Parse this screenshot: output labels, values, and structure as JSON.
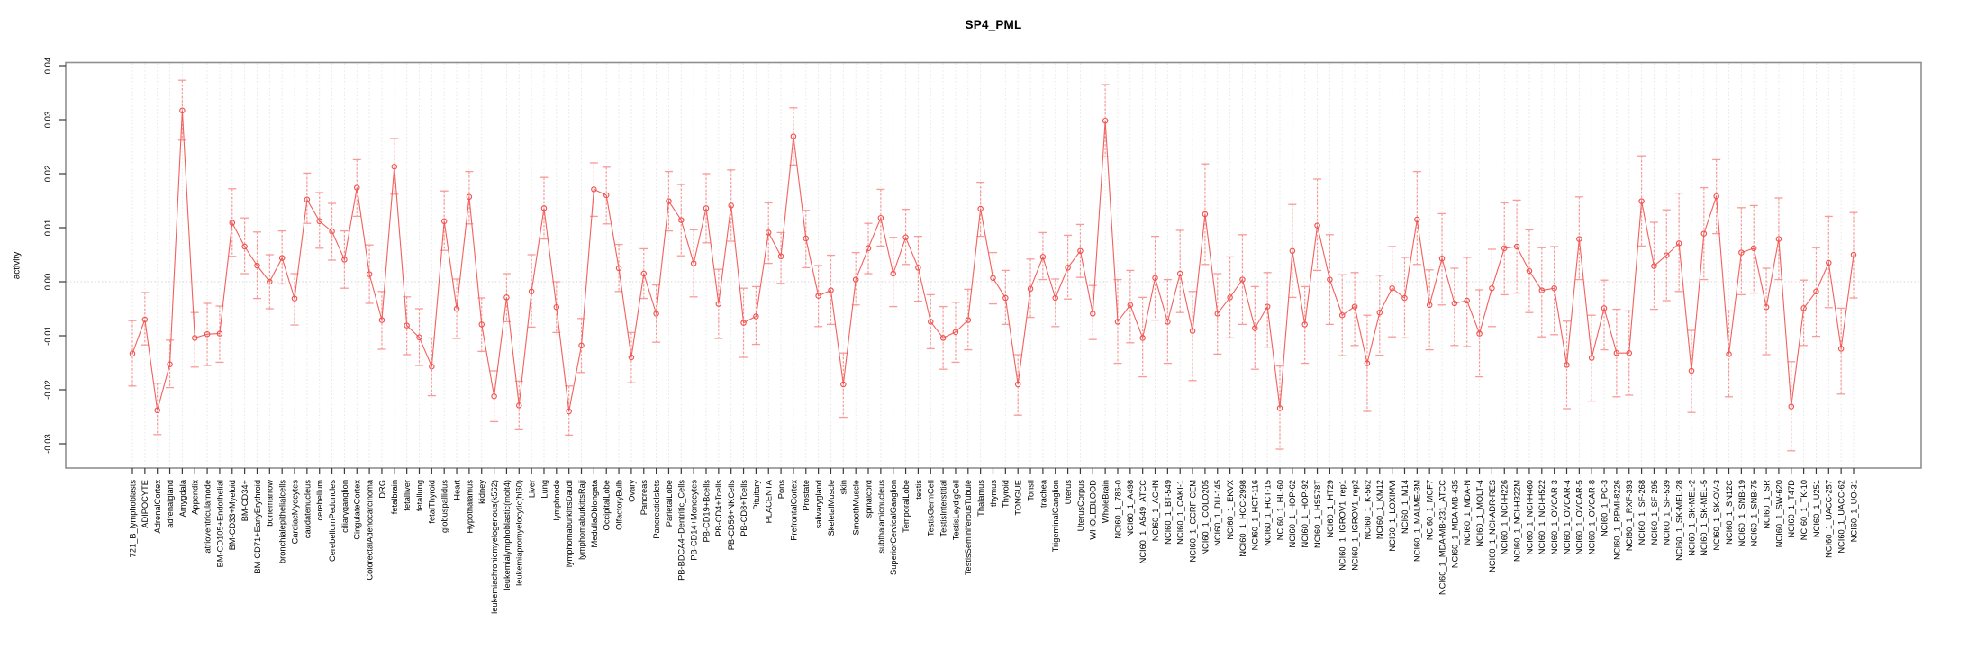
{
  "chart_data": {
    "type": "scatter",
    "subtype": "error-bar-series",
    "title": "SP4_PML",
    "xlabel": "",
    "ylabel": "activity",
    "ylim": [
      -0.0345,
      0.0405
    ],
    "grid": "vertical dashed gridline per category; dotted horizontal line at 0.00",
    "legend_position": "none",
    "ytick_values": [
      0.04,
      0.03,
      0.02,
      0.01,
      0.0,
      -0.01,
      -0.02,
      -0.03
    ],
    "ytick_labels": [
      "0.04",
      "0.03",
      "0.02",
      "0.01",
      "0.00",
      "-0.01",
      "-0.02",
      "-0.03"
    ],
    "categories": [
      "721_B_lymphoblasts",
      "ADIPOCYTE",
      "AdrenalCortex",
      "adrenalgland",
      "Amygdala",
      "Appendix",
      "atrioventricularnode",
      "BM-CD105+Endothelial",
      "BM-CD33+Myeloid",
      "BM-CD34+",
      "BM-CD71+EarlyErythroid",
      "bonemarrow",
      "bronchialepithelialcells",
      "CardiacMyocytes",
      "caudatenucleus",
      "cerebellum",
      "CerebellumPeduncles",
      "ciliaryganglion",
      "CingulateCortex",
      "ColorectalAdenocarcinoma",
      "DRG",
      "fetalbrain",
      "fetalliver",
      "fetallung",
      "fetalThyroid",
      "globuspallidus",
      "Heart",
      "Hypothalamus",
      "kidney",
      "leukemiachronicmyelogenous(k562)",
      "leukemialymphoblastic(molt4)",
      "leukemiapromyelocytic(hl60)",
      "Liver",
      "Lung",
      "lymphnode",
      "lymphomaburkittsDaudi",
      "lymphomaburkittsRaji",
      "MedullaOblongata",
      "OccipitalLobe",
      "OlfactoryBulb",
      "Ovary",
      "Pancreas",
      "PancreaticIslets",
      "ParietalLobe",
      "PB-BDCA4+Dentritic_Cells",
      "PB-CD14+Monocytes",
      "PB-CD19+Bcells",
      "PB-CD4+Tcells",
      "PB-CD56+NKCells",
      "PB-CD8+Tcells",
      "Pituitary",
      "PLACENTA",
      "Pons",
      "PrefrontalCortex",
      "Prostate",
      "salivarygland",
      "SkeletalMuscle",
      "skin",
      "SmoothMuscle",
      "spinalcord",
      "subthalamicnucleus",
      "SuperiorCervicalGanglion",
      "TemporalLobe",
      "testis",
      "TestisGermCell",
      "TestisInterstitial",
      "TestisLeydigCell",
      "TestisSeminiferousTubule",
      "Thalamus",
      "thymus",
      "Thyroid",
      "TONGUE",
      "Tonsil",
      "trachea",
      "TrigeminalGanglion",
      "Uterus",
      "UterusCorpus",
      "WHOLEBLOOD",
      "WholeBrain",
      "NCI60_1_786-0",
      "NCI60_1_A498",
      "NCI60_1_A549_ATCC",
      "NCI60_1_ACHN",
      "NCI60_1_BT-549",
      "NCI60_1_CAKI-1",
      "NCI60_1_CCRF-CEM",
      "NCI60_1_COLO205",
      "NCI60_1_DU-145",
      "NCI60_1_EKVX",
      "NCI60_1_HCC-2998",
      "NCI60_1_HCT-116",
      "NCI60_1_HCT-15",
      "NCI60_1_HL-60",
      "NCI60_1_HOP-62",
      "NCI60_1_HOP-92",
      "NCI60_1_HS578T",
      "NCI60_1_HT29",
      "NCI60_1_IGROV1_rep1",
      "NCI60_1_IGROV1_rep2",
      "NCI60_1_K-562",
      "NCI60_1_KM12",
      "NCI60_1_LOXIMVI",
      "NCI60_1_M14",
      "NCI60_1_MALME-3M",
      "NCI60_1_MCF7",
      "NCI60_1_MDA-MB-231_ATCC",
      "NCI60_1_MDA-MB-435",
      "NCI60_1_MDA-N",
      "NCI60_1_MOLT-4",
      "NCI60_1_NCI-ADR-RES",
      "NCI60_1_NCI-H226",
      "NCI60_1_NCI-H322M",
      "NCI60_1_NCI-H460",
      "NCI60_1_NCI-H522",
      "NCI60_1_OVCAR-3",
      "NCI60_1_OVCAR-4",
      "NCI60_1_OVCAR-5",
      "NCI60_1_OVCAR-8",
      "NCI60_1_PC-3",
      "NCI60_1_RPMI-8226",
      "NCI60_1_RXF-393",
      "NCI60_1_SF-268",
      "NCI60_1_SF-295",
      "NCI60_1_SF-539",
      "NCI60_1_SK-MEL-28",
      "NCI60_1_SK-MEL-2",
      "NCI60_1_SK-MEL-5",
      "NCI60_1_SK-OV-3",
      "NCI60_1_SN12C",
      "NCI60_1_SNB-19",
      "NCI60_1_SNB-75",
      "NCI60_1_SR",
      "NCI60_1_SW-620",
      "NCI60_1_T47D",
      "NCI60_1_TK-10",
      "NCI60_1_U251",
      "NCI60_1_UACC-257",
      "NCI60_1_UACC-62",
      "NCI60_1_UO-31"
    ],
    "values": [
      -0.0133,
      -0.007,
      -0.0238,
      -0.0153,
      0.0317,
      -0.0104,
      -0.0097,
      -0.0096,
      0.0109,
      0.0065,
      0.003,
      0.0,
      0.0044,
      -0.0031,
      0.0152,
      0.0112,
      0.0093,
      0.0041,
      0.0174,
      0.0014,
      -0.0071,
      0.0213,
      -0.0081,
      -0.0103,
      -0.0157,
      0.0112,
      -0.005,
      0.0157,
      -0.0079,
      -0.0212,
      -0.0029,
      -0.0229,
      -0.0018,
      0.0136,
      -0.0047,
      -0.024,
      -0.0118,
      0.0171,
      0.016,
      0.0025,
      -0.014,
      0.0015,
      -0.0059,
      0.0149,
      0.0114,
      0.0034,
      0.0136,
      -0.0041,
      0.0141,
      -0.0076,
      -0.0064,
      0.0091,
      0.0047,
      0.0269,
      0.008,
      -0.0026,
      -0.0016,
      -0.019,
      0.0004,
      0.0062,
      0.0118,
      0.0015,
      0.0082,
      0.0026,
      -0.0074,
      -0.0104,
      -0.0093,
      -0.0071,
      0.0135,
      0.0007,
      -0.003,
      -0.019,
      -0.0013,
      0.0046,
      -0.003,
      0.0026,
      0.0057,
      -0.0059,
      0.0298,
      -0.0074,
      -0.0043,
      -0.0104,
      0.0007,
      -0.0074,
      0.0015,
      -0.0091,
      0.0125,
      -0.0059,
      -0.0029,
      0.0004,
      -0.0086,
      -0.0046,
      -0.0234,
      0.0057,
      -0.0079,
      0.0104,
      0.0004,
      -0.0062,
      -0.0046,
      -0.0151,
      -0.0057,
      -0.0012,
      -0.003,
      0.0115,
      -0.0043,
      0.0043,
      -0.004,
      -0.0035,
      -0.0096,
      -0.0012,
      0.0062,
      0.0065,
      0.002,
      -0.0016,
      -0.0012,
      -0.0154,
      0.0079,
      -0.0141,
      -0.0049,
      -0.0132,
      -0.0132,
      0.0149,
      0.0029,
      0.0049,
      0.0071,
      -0.0165,
      0.0089,
      0.0158,
      -0.0134,
      0.0054,
      0.0062,
      -0.0047,
      0.0079,
      -0.0231,
      -0.0049,
      -0.0018,
      0.0035,
      -0.0124,
      0.005
    ],
    "err_hi": [
      -0.0072,
      -0.002,
      -0.0188,
      -0.0108,
      0.0373,
      -0.0057,
      -0.004,
      -0.0045,
      0.0172,
      0.0118,
      0.0092,
      0.005,
      0.0094,
      0.0015,
      0.0201,
      0.0165,
      0.0145,
      0.0094,
      0.0226,
      0.0068,
      -0.0018,
      0.0265,
      -0.0028,
      -0.005,
      -0.0104,
      0.0168,
      0.0005,
      0.0204,
      -0.003,
      -0.0165,
      0.0015,
      -0.0184,
      0.005,
      0.0193,
      0.0,
      -0.0193,
      -0.0068,
      0.022,
      0.0212,
      0.0069,
      -0.0094,
      0.0061,
      -0.0006,
      0.0204,
      0.018,
      0.0096,
      0.02,
      0.0023,
      0.0207,
      -0.0012,
      -0.0009,
      0.0146,
      0.0091,
      0.0322,
      0.0132,
      0.003,
      0.0049,
      -0.0132,
      0.0054,
      0.0108,
      0.0171,
      0.0082,
      0.0134,
      0.0084,
      -0.0024,
      -0.0046,
      -0.0038,
      -0.0014,
      0.0184,
      0.0054,
      0.0021,
      -0.0135,
      0.0042,
      0.0091,
      0.0005,
      0.0086,
      0.0106,
      -0.0007,
      0.0365,
      0.0004,
      0.0021,
      -0.0029,
      0.0084,
      0.0004,
      0.0095,
      -0.0018,
      0.0218,
      0.0015,
      0.0046,
      0.0087,
      -0.0009,
      0.0017,
      -0.0156,
      0.0143,
      -0.0009,
      0.019,
      0.0087,
      0.0013,
      0.0017,
      -0.0062,
      0.0012,
      0.0065,
      0.0045,
      0.0204,
      0.0022,
      0.0126,
      0.0025,
      0.0045,
      -0.0015,
      0.006,
      0.0146,
      0.0151,
      0.0096,
      0.0063,
      0.0065,
      -0.0073,
      0.0157,
      -0.0062,
      0.0003,
      -0.0051,
      -0.0054,
      0.0233,
      0.011,
      0.0133,
      0.0164,
      -0.009,
      0.0174,
      0.0226,
      -0.0054,
      0.0137,
      0.0141,
      0.0025,
      0.0155,
      -0.0148,
      0.0003,
      0.0063,
      0.0121,
      -0.0049,
      0.0128
    ],
    "err_lo": [
      -0.0193,
      -0.0117,
      -0.0283,
      -0.0196,
      0.0262,
      -0.0158,
      -0.0155,
      -0.0149,
      0.0047,
      0.0015,
      -0.0031,
      -0.005,
      -0.0004,
      -0.008,
      0.0108,
      0.0062,
      0.004,
      -0.0012,
      0.0121,
      -0.004,
      -0.0125,
      0.0162,
      -0.0135,
      -0.0155,
      -0.0211,
      0.0058,
      -0.0105,
      0.0107,
      -0.0129,
      -0.0259,
      -0.0074,
      -0.0274,
      -0.0084,
      0.0079,
      -0.0094,
      -0.0284,
      -0.0168,
      0.0121,
      0.0107,
      -0.0018,
      -0.0187,
      -0.0031,
      -0.0112,
      0.0094,
      0.0048,
      -0.0028,
      0.0072,
      -0.0105,
      0.0075,
      -0.014,
      -0.0116,
      0.0034,
      -0.0003,
      0.0216,
      0.0026,
      -0.0083,
      -0.0079,
      -0.0251,
      -0.0043,
      0.0015,
      0.0066,
      -0.0046,
      0.0032,
      -0.0036,
      -0.0124,
      -0.0162,
      -0.0149,
      -0.0126,
      0.0084,
      -0.0041,
      -0.0079,
      -0.0247,
      -0.0066,
      0.0004,
      -0.0083,
      -0.0032,
      0.0008,
      -0.0107,
      0.0231,
      -0.0151,
      -0.0113,
      -0.0176,
      -0.0071,
      -0.0151,
      -0.0057,
      -0.0183,
      0.0032,
      -0.0134,
      -0.0104,
      -0.0079,
      -0.0162,
      -0.0121,
      -0.031,
      -0.0029,
      -0.0151,
      0.0021,
      -0.0079,
      -0.0137,
      -0.0118,
      -0.024,
      -0.0136,
      -0.0102,
      -0.0104,
      0.0032,
      -0.0126,
      -0.0043,
      -0.0118,
      -0.012,
      -0.0176,
      -0.0083,
      -0.0024,
      -0.0021,
      -0.0057,
      -0.0102,
      -0.0098,
      -0.0235,
      0.0004,
      -0.0221,
      -0.0126,
      -0.0213,
      -0.021,
      0.0066,
      -0.0051,
      -0.0035,
      -0.0018,
      -0.0242,
      0.0004,
      0.0089,
      -0.0213,
      -0.0024,
      -0.0021,
      -0.0135,
      0.0004,
      -0.0313,
      -0.0118,
      -0.0101,
      -0.0048,
      -0.0208,
      -0.003
    ],
    "colors": {
      "point": "#f0504d",
      "series_line": "#f2605d",
      "error_bar": "#f79a98",
      "gridline": "#e4e4e4",
      "zero_line": "#d6d6d6",
      "plot_border": "#8f8f8f",
      "tick": "#3a3a3a",
      "text": "#000000",
      "background": "#ffffff"
    }
  }
}
